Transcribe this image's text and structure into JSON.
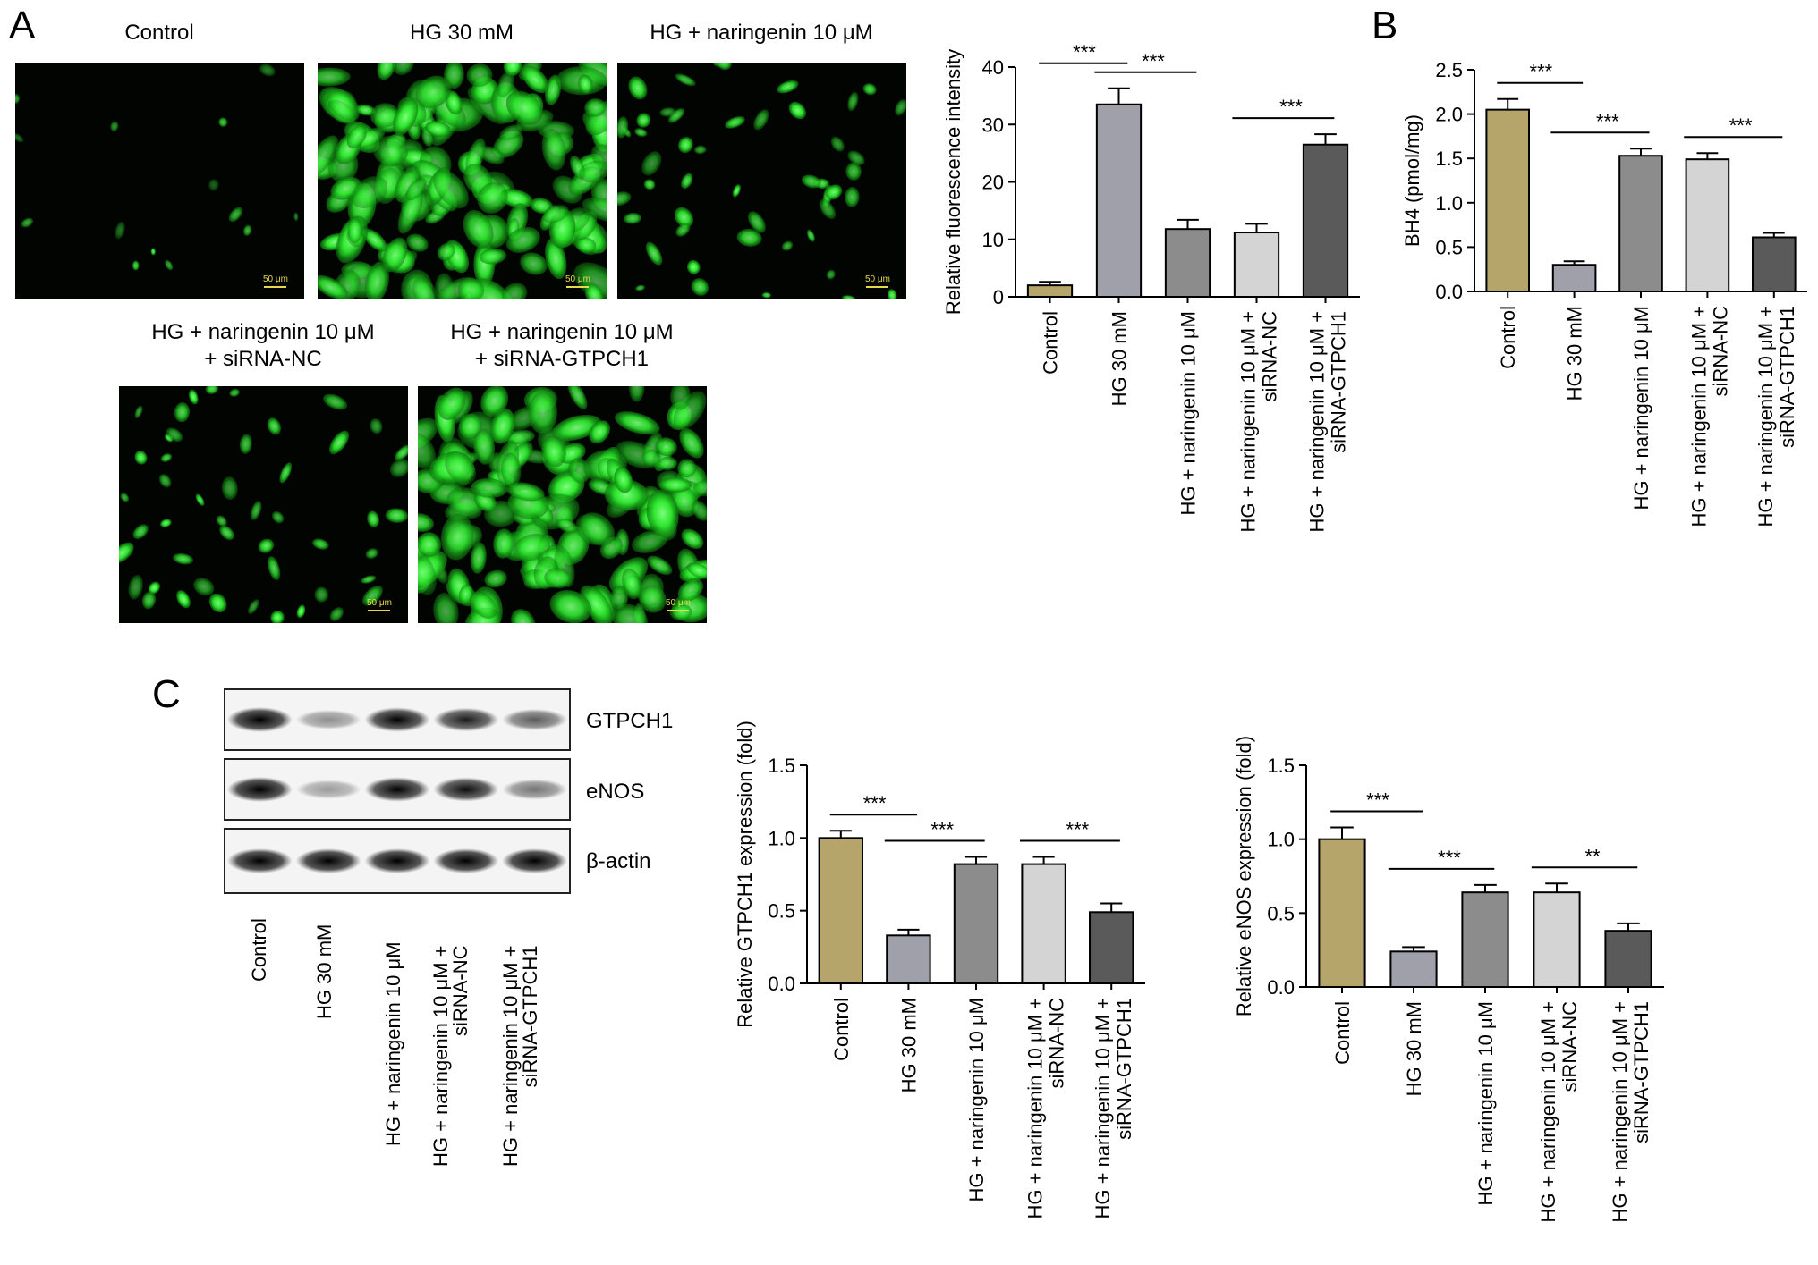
{
  "panels": {
    "A": {
      "letter": "A"
    },
    "B": {
      "letter": "B"
    },
    "C": {
      "letter": "C"
    }
  },
  "micrographs": {
    "scale_bar": "50 μm",
    "images": [
      {
        "title": "Control",
        "density": "sparse"
      },
      {
        "title": "HG 30 mM",
        "density": "dense"
      },
      {
        "title": "HG + naringenin 10 μM",
        "density": "moderate"
      },
      {
        "title_line1": "HG + naringenin 10 μM",
        "title_line2": "+ siRNA-NC",
        "density": "moderate"
      },
      {
        "title_line1": "HG + naringenin 10 μM",
        "title_line2": "+ siRNA-GTPCH1",
        "density": "dense"
      }
    ]
  },
  "group_labels": [
    [
      "Control"
    ],
    [
      "HG 30 mM"
    ],
    [
      "HG + naringenin 10 μM"
    ],
    [
      "HG + naringenin 10 μM +",
      "siRNA-NC"
    ],
    [
      "HG + naringenin 10 μM +",
      "siRNA-GTPCH1"
    ]
  ],
  "colors": {
    "control": "#b5a56b",
    "hg": "#a0a0ab",
    "naringenin": "#8c8c8c",
    "sirna_nc": "#d4d4d4",
    "sirna_gtpch1": "#5a5a5a",
    "cells": "#2ee62e"
  },
  "western_blot": {
    "bands": [
      "GTPCH1",
      "eNOS",
      "β-actin"
    ],
    "intensity": [
      [
        1.0,
        0.4,
        0.95,
        0.85,
        0.6
      ],
      [
        1.0,
        0.35,
        0.95,
        0.9,
        0.5
      ],
      [
        1.0,
        1.0,
        1.0,
        1.0,
        1.0
      ]
    ]
  },
  "chart_data": [
    {
      "type": "bar",
      "panel": "A",
      "ylabel": "Relative fluorescence intensity",
      "ylim": [
        0,
        40
      ],
      "yticks": [
        0,
        10,
        20,
        30,
        40
      ],
      "ytick_labels": [
        "0",
        "10",
        "20",
        "30",
        "40"
      ],
      "values": [
        2.0,
        33.5,
        11.8,
        11.2,
        26.5
      ],
      "errors": [
        0.6,
        2.8,
        1.6,
        1.5,
        1.8
      ],
      "significance": [
        {
          "from": 0,
          "to": 1,
          "label": "***"
        },
        {
          "from": 1,
          "to": 2,
          "label": "***"
        },
        {
          "from": 3,
          "to": 4,
          "label": "***"
        }
      ]
    },
    {
      "type": "bar",
      "panel": "B",
      "ylabel": "BH4 (pmol/mg)",
      "ylim": [
        0,
        2.5
      ],
      "yticks": [
        0,
        0.5,
        1.0,
        1.5,
        2.0,
        2.5
      ],
      "ytick_labels": [
        "0.0",
        "0.5",
        "1.0",
        "1.5",
        "2.0",
        "2.5"
      ],
      "values": [
        2.05,
        0.3,
        1.53,
        1.49,
        0.61
      ],
      "errors": [
        0.12,
        0.04,
        0.08,
        0.07,
        0.05
      ],
      "significance": [
        {
          "from": 0,
          "to": 1,
          "label": "***"
        },
        {
          "from": 1,
          "to": 2,
          "label": "***"
        },
        {
          "from": 3,
          "to": 4,
          "label": "***"
        }
      ]
    },
    {
      "type": "bar",
      "panel": "C",
      "ylabel": "Relative GTPCH1 expression (fold)",
      "ylim": [
        0,
        1.5
      ],
      "yticks": [
        0,
        0.5,
        1.0,
        1.5
      ],
      "ytick_labels": [
        "0.0",
        "0.5",
        "1.0",
        "1.5"
      ],
      "values": [
        1.0,
        0.33,
        0.82,
        0.82,
        0.49
      ],
      "errors": [
        0.05,
        0.04,
        0.05,
        0.05,
        0.06
      ],
      "significance": [
        {
          "from": 0,
          "to": 1,
          "label": "***"
        },
        {
          "from": 1,
          "to": 2,
          "label": "***"
        },
        {
          "from": 3,
          "to": 4,
          "label": "***"
        }
      ]
    },
    {
      "type": "bar",
      "panel": "C",
      "ylabel": "Relative eNOS expression (fold)",
      "ylim": [
        0,
        1.5
      ],
      "yticks": [
        0,
        0.5,
        1.0,
        1.5
      ],
      "ytick_labels": [
        "0.0",
        "0.5",
        "1.0",
        "1.5"
      ],
      "values": [
        1.0,
        0.24,
        0.64,
        0.64,
        0.38
      ],
      "errors": [
        0.08,
        0.03,
        0.05,
        0.06,
        0.05
      ],
      "significance": [
        {
          "from": 0,
          "to": 1,
          "label": "***"
        },
        {
          "from": 1,
          "to": 2,
          "label": "***"
        },
        {
          "from": 3,
          "to": 4,
          "label": "**"
        }
      ]
    }
  ]
}
